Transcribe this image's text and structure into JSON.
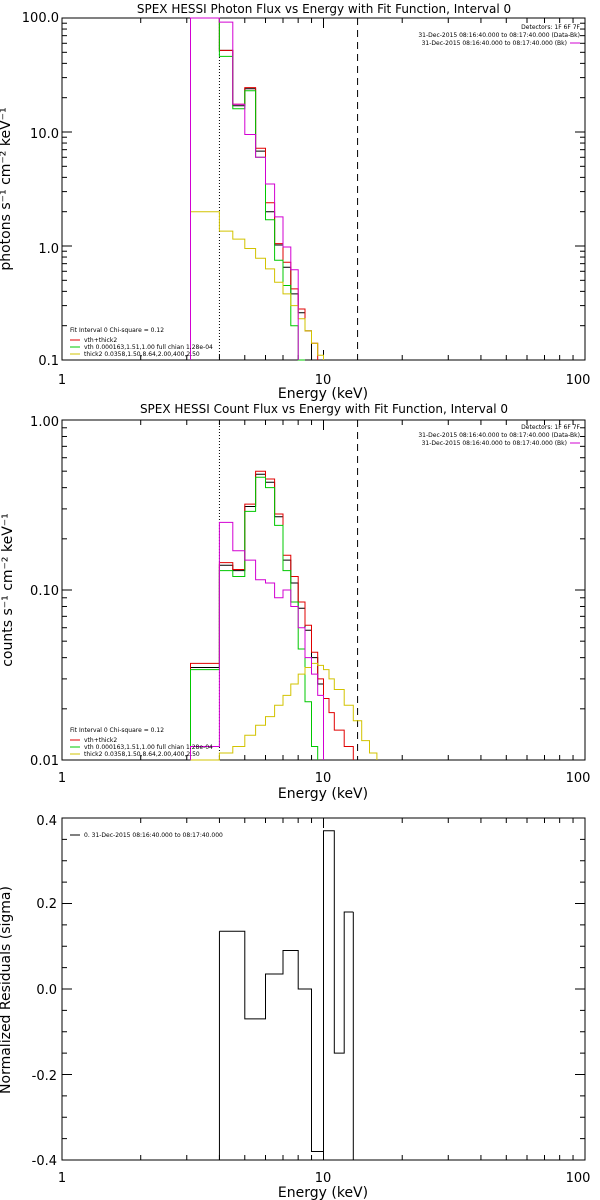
{
  "chart_data": [
    {
      "type": "line",
      "title": "SPEX HESSI Photon Flux vs Energy with Fit Function, Interval 0",
      "xlabel": "Energy (keV)",
      "ylabel": "photons s⁻¹ cm⁻² keV⁻¹",
      "xscale": "log",
      "yscale": "log",
      "xlim": [
        1,
        100
      ],
      "ylim": [
        0.1,
        100
      ],
      "xticks": [
        "1",
        "10",
        "100"
      ],
      "yticks": [
        "0.1",
        "1.0",
        "10.0",
        "100.0"
      ],
      "vlines": [
        {
          "x": 4.0,
          "style": "dotted"
        },
        {
          "x": 13.5,
          "style": "dashed"
        }
      ],
      "info_lines": [
        "Detectors: 1F 6F 7F",
        "31-Dec-2015 08:16:40.000 to 08:17:40.000 (Data-Bk)",
        "31-Dec-2015 08:16:40.000 to 08:17:40.000 (Bk)"
      ],
      "fit_text": "Fit Interval 0   Chi-square = 0.12",
      "legend": [
        "vth+thick2",
        "vth 0.000163,1.51,1.00  full chian 1.28e-04",
        "thick2 0.0358,1.50,8.64,2.00,400,2.50"
      ],
      "edges": [
        3.1,
        4.0,
        4.5,
        5.0,
        5.5,
        6.0,
        6.5,
        7.0,
        7.5,
        8.0,
        8.5,
        9.0,
        9.5,
        10.0,
        10.5,
        11.0,
        12.0,
        13.0,
        14.0,
        15.0,
        16.0,
        17.0,
        18.0
      ],
      "series": [
        {
          "name": "Data-Bk",
          "color": "#000000",
          "values": [
            100,
            52,
            17,
            24,
            6.8,
            2.0,
            1.02,
            0.65,
            0.38,
            0.26,
            0.18
          ]
        },
        {
          "name": "vth+thick2",
          "color": "#e00000",
          "values": [
            100,
            52,
            17.5,
            24.5,
            7.2,
            2.4,
            1.05,
            0.72,
            0.42,
            0.28,
            0.18,
            0.14
          ]
        },
        {
          "name": "vth 0.000163,1.51,1.00  full chian 1.28e-04",
          "color": "#00c800",
          "values": [
            100,
            46,
            16,
            23,
            6.0,
            1.7,
            0.75,
            0.45,
            0.2,
            0.1
          ]
        },
        {
          "name": "thick2 0.0358,1.50,8.64,2.00,400,2.50",
          "color": "#d2c300",
          "values": [
            2.0,
            1.35,
            1.15,
            0.95,
            0.78,
            0.63,
            0.48,
            0.38,
            0.3,
            0.23,
            0.18,
            0.14,
            0.11
          ]
        },
        {
          "name": "Bk",
          "color": "#d200d2",
          "values": [
            100,
            92,
            17.5,
            9.5,
            6.0,
            3.5,
            1.8,
            0.98,
            0.62
          ]
        }
      ]
    },
    {
      "type": "line",
      "title": "SPEX HESSI Count Flux vs Energy with Fit Function, Interval 0",
      "xlabel": "Energy (keV)",
      "ylabel": "counts s⁻¹ cm⁻² keV⁻¹",
      "xscale": "log",
      "yscale": "log",
      "xlim": [
        1,
        100
      ],
      "ylim": [
        0.01,
        1.0
      ],
      "xticks": [
        "1",
        "10",
        "100"
      ],
      "yticks": [
        "0.01",
        "0.10",
        "1.00"
      ],
      "vlines": [
        {
          "x": 4.0,
          "style": "dotted"
        },
        {
          "x": 13.5,
          "style": "dashed"
        }
      ],
      "info_lines": [
        "Detectors: 1F 6F 7F",
        "31-Dec-2015 08:16:40.000 to 08:17:40.000 (Data-Bk)",
        "31-Dec-2015 08:16:40.000 to 08:17:40.000 (Bk)"
      ],
      "fit_text": "Fit Interval 0   Chi-square = 0.12",
      "legend": [
        "vth+thick2",
        "vth 0.000163,1.51,1.00  full chian 1.28e-04",
        "thick2 0.0358,1.50,8.64,2.00,400,2.50"
      ],
      "edges": [
        3.1,
        4.0,
        4.5,
        5.0,
        5.5,
        6.0,
        6.5,
        7.0,
        7.5,
        8.0,
        8.5,
        9.0,
        9.5,
        10.0,
        10.5,
        11.0,
        12.0,
        13.0,
        14.0,
        15.0,
        16.0,
        17.0,
        18.0,
        20.0
      ],
      "series": [
        {
          "name": "Data-Bk",
          "color": "#000000",
          "values": [
            0.035,
            0.14,
            0.13,
            0.31,
            0.48,
            0.43,
            0.27,
            0.15,
            0.11,
            0.078,
            0.058,
            0.04,
            0.028
          ]
        },
        {
          "name": "vth+thick2",
          "color": "#e00000",
          "values": [
            0.037,
            0.145,
            0.132,
            0.32,
            0.5,
            0.45,
            0.28,
            0.16,
            0.12,
            0.085,
            0.062,
            0.043,
            0.03,
            0.023,
            0.019,
            0.015,
            0.012
          ]
        },
        {
          "name": "vth 0.000163,1.51,1.00  full chian 1.28e-04",
          "color": "#00c800",
          "values": [
            0.034,
            0.13,
            0.12,
            0.29,
            0.46,
            0.4,
            0.24,
            0.13,
            0.085,
            0.045,
            0.022,
            0.012
          ]
        },
        {
          "name": "thick2 0.0358,1.50,8.64,2.00,400,2.50",
          "color": "#d2c300",
          "values": [
            0.01,
            0.011,
            0.012,
            0.014,
            0.016,
            0.018,
            0.021,
            0.024,
            0.028,
            0.032,
            0.035,
            0.037,
            0.036,
            0.034,
            0.03,
            0.026,
            0.021,
            0.017,
            0.013,
            0.011
          ]
        },
        {
          "name": "Bk",
          "color": "#d200d2",
          "values": [
            0.012,
            0.25,
            0.17,
            0.15,
            0.115,
            0.11,
            0.09,
            0.1,
            0.08,
            0.06,
            0.04,
            0.032,
            0.024
          ]
        }
      ]
    },
    {
      "type": "line",
      "title": "",
      "xlabel": "Energy (keV)",
      "ylabel": "Normalized Residuals (sigma)",
      "xscale": "log",
      "yscale": "linear",
      "xlim": [
        1,
        100
      ],
      "ylim": [
        -0.4,
        0.4
      ],
      "xticks": [
        "1",
        "10",
        "100"
      ],
      "yticks": [
        "-0.4",
        "-0.2",
        "0.0",
        "0.2",
        "0.4"
      ],
      "legend": [
        "0. 31-Dec-2015 08:16:40.000 to 08:17:40.000"
      ],
      "edges": [
        4.0,
        5.0,
        6.0,
        7.0,
        8.0,
        9.0,
        10.0,
        11.0,
        12.0,
        13.0
      ],
      "series": [
        {
          "name": "0. 31-Dec-2015 08:16:40.000 to 08:17:40.000",
          "color": "#000000",
          "values": [
            0.135,
            -0.07,
            0.035,
            0.09,
            0.0,
            -0.38,
            0.37,
            -0.15,
            0.18
          ]
        }
      ]
    }
  ]
}
